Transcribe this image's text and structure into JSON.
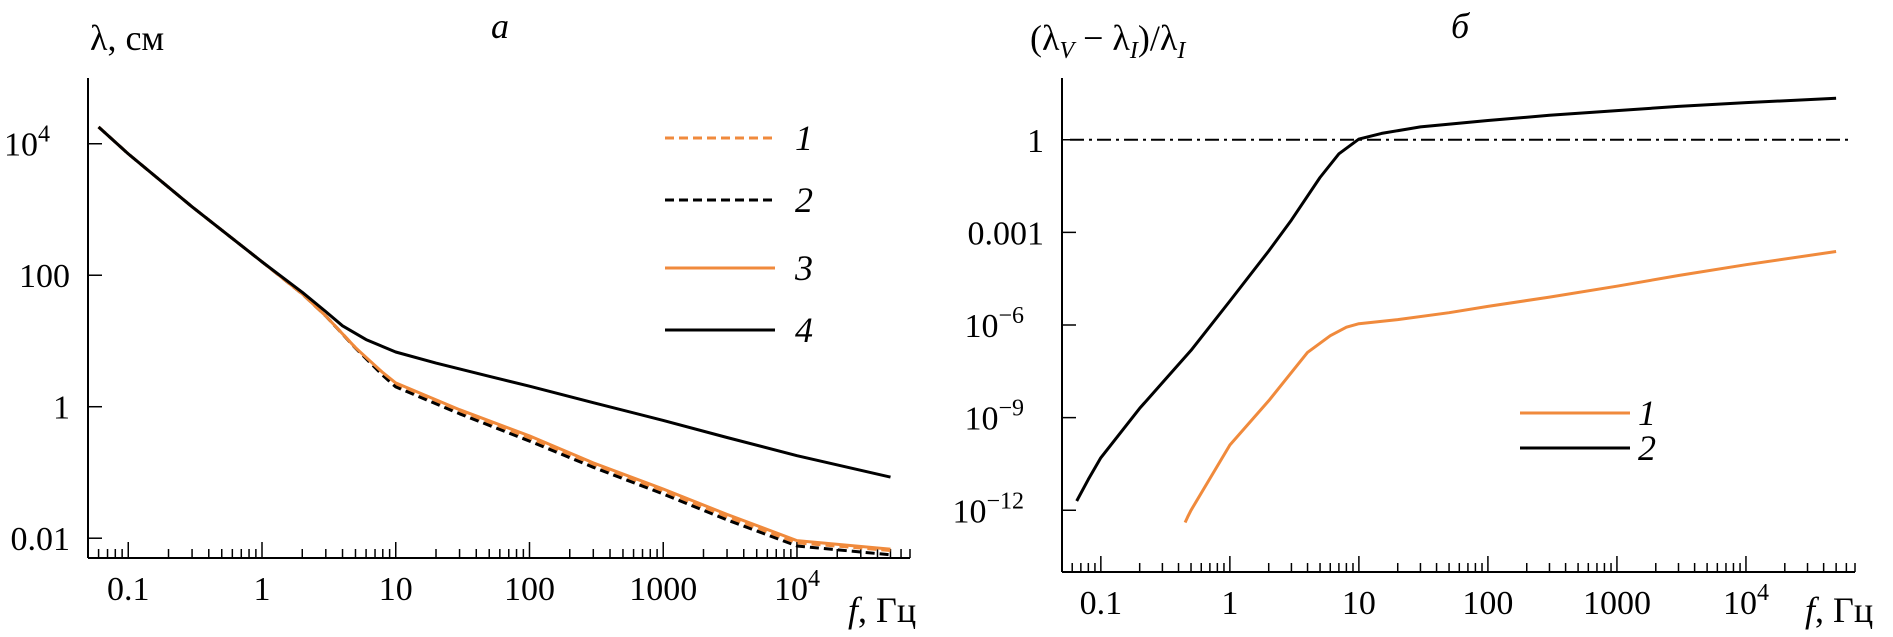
{
  "colors": {
    "orange": "#f08a3c",
    "black": "#000000"
  },
  "chart_data": [
    {
      "type": "line",
      "panel_label": "а",
      "title": "",
      "ylabel": "λ, см",
      "xlabel": "f, Гц",
      "xscale": "log",
      "yscale": "log",
      "xlim": [
        0.05,
        70000
      ],
      "ylim": [
        0.005,
        100000
      ],
      "x_ticks": [
        {
          "value": 0.1,
          "label": "0.1"
        },
        {
          "value": 1,
          "label": "1"
        },
        {
          "value": 10,
          "label": "10"
        },
        {
          "value": 100,
          "label": "100"
        },
        {
          "value": 1000,
          "label": "1000"
        },
        {
          "value": 10000,
          "label": "10",
          "sup": "4"
        }
      ],
      "y_ticks": [
        {
          "value": 0.01,
          "label": "0.01"
        },
        {
          "value": 1,
          "label": "1"
        },
        {
          "value": 100,
          "label": "100"
        },
        {
          "value": 10000,
          "label": "10",
          "sup": "4"
        }
      ],
      "legend_position": "top-right",
      "series": [
        {
          "name": "1",
          "color": "#f08a3c",
          "style": "dashed",
          "x": [
            0.06,
            0.1,
            0.3,
            1,
            2,
            3,
            5,
            8,
            10,
            30,
            100,
            300,
            1000,
            3000,
            10000,
            50000
          ],
          "y": [
            18000,
            7000,
            1100,
            160,
            52,
            24,
            7.9,
            3.1,
            2.1,
            0.83,
            0.33,
            0.13,
            0.052,
            0.021,
            0.0085,
            0.0065
          ]
        },
        {
          "name": "2",
          "color": "#000000",
          "style": "dashed",
          "x": [
            0.06,
            0.1,
            0.3,
            1,
            2,
            3,
            5,
            8,
            10,
            30,
            100,
            300,
            1000,
            3000,
            10000,
            50000
          ],
          "y": [
            18000,
            7000,
            1100,
            160,
            52,
            24,
            7.8,
            3.0,
            2.0,
            0.78,
            0.3,
            0.12,
            0.047,
            0.019,
            0.0076,
            0.0056
          ]
        },
        {
          "name": "3",
          "color": "#f08a3c",
          "style": "solid",
          "x": [
            0.06,
            0.1,
            0.3,
            1,
            2,
            3,
            5,
            8,
            10,
            30,
            100,
            300,
            1000,
            3000,
            10000,
            50000
          ],
          "y": [
            18000,
            7000,
            1100,
            160,
            52,
            24,
            7.9,
            3.3,
            2.3,
            0.9,
            0.36,
            0.14,
            0.056,
            0.023,
            0.0092,
            0.0068
          ]
        },
        {
          "name": "4",
          "color": "#000000",
          "style": "solid",
          "x": [
            0.06,
            0.1,
            0.3,
            1,
            2,
            3,
            4,
            6,
            10,
            20,
            50,
            100,
            300,
            1000,
            3000,
            10000,
            50000
          ],
          "y": [
            18000,
            7000,
            1100,
            160,
            55,
            28,
            17,
            10.5,
            6.8,
            4.6,
            2.9,
            2.05,
            1.15,
            0.62,
            0.34,
            0.18,
            0.085
          ]
        }
      ]
    },
    {
      "type": "line",
      "panel_label": "б",
      "title": "",
      "xlabel": "f, Гц",
      "xscale": "log",
      "yscale": "log",
      "xlim": [
        0.05,
        70000
      ],
      "ylim": [
        1e-14,
        100
      ],
      "x_ticks": [
        {
          "value": 0.1,
          "label": "0.1"
        },
        {
          "value": 1,
          "label": "1"
        },
        {
          "value": 10,
          "label": "10"
        },
        {
          "value": 100,
          "label": "100"
        },
        {
          "value": 1000,
          "label": "1000"
        },
        {
          "value": 10000,
          "label": "10",
          "sup": "4"
        }
      ],
      "y_ticks": [
        {
          "value": 1e-12,
          "label": "10",
          "sup": "−12"
        },
        {
          "value": 1e-09,
          "label": "10",
          "sup": "−9"
        },
        {
          "value": 1e-06,
          "label": "10",
          "sup": "−6"
        },
        {
          "value": 0.001,
          "label": "0.001"
        },
        {
          "value": 1,
          "label": "1"
        }
      ],
      "reference_line": {
        "y": 1,
        "style": "dash-dot"
      },
      "legend_position": "center-right",
      "series": [
        {
          "name": "1",
          "color": "#f08a3c",
          "style": "solid",
          "x": [
            0.45,
            0.47,
            0.5,
            1,
            2,
            4,
            6,
            8,
            10,
            20,
            50,
            100,
            300,
            1000,
            3000,
            10000,
            50000
          ],
          "y": [
            4e-13,
            6e-13,
            1e-12,
            1.3e-10,
            3.5e-09,
            1.3e-07,
            4.5e-07,
            8.5e-07,
            1.1e-06,
            1.5e-06,
            2.5e-06,
            4e-06,
            8e-06,
            1.8e-05,
            4e-05,
            9e-05,
            0.00024
          ]
        },
        {
          "name": "2",
          "color": "#000000",
          "style": "solid",
          "x": [
            0.065,
            0.08,
            0.1,
            0.2,
            0.5,
            1,
            2,
            3,
            5,
            7,
            10,
            15,
            30,
            100,
            300,
            1000,
            3000,
            10000,
            50000
          ],
          "y": [
            2e-12,
            1e-11,
            5e-11,
            2e-09,
            1.5e-07,
            6e-06,
            0.00025,
            0.0025,
            0.06,
            0.35,
            1.05,
            1.6,
            2.6,
            4.2,
            6.2,
            8.8,
            12,
            16,
            22
          ]
        }
      ]
    }
  ]
}
